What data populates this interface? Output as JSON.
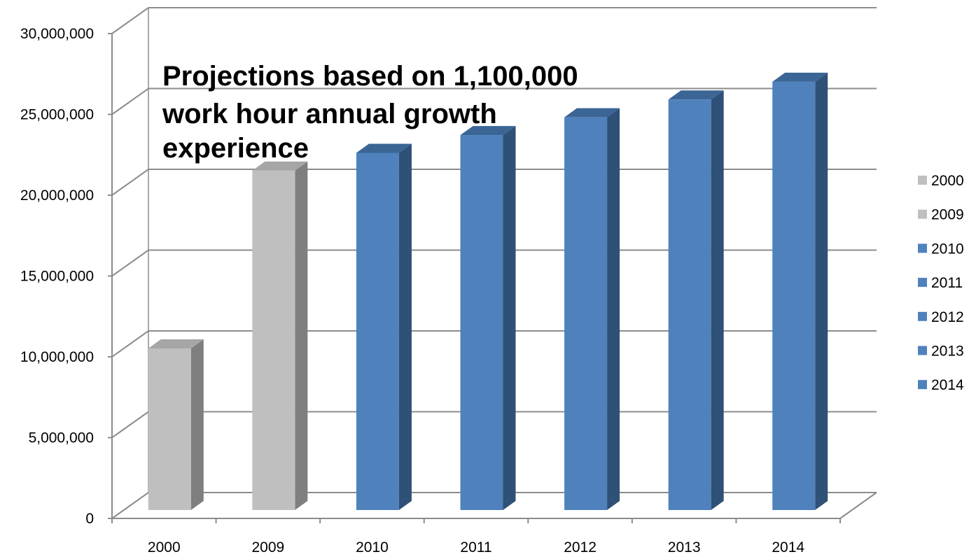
{
  "chart_data": {
    "type": "bar",
    "categories": [
      "2000",
      "2009",
      "2010",
      "2011",
      "2012",
      "2013",
      "2014"
    ],
    "values": [
      10000000,
      21000000,
      22100000,
      23200000,
      24300000,
      25400000,
      26500000
    ],
    "title": "",
    "xlabel": "",
    "ylabel": "",
    "ylim": [
      0,
      30000000
    ],
    "y_ticks": [
      "0",
      "5,000,000",
      "10,000,000",
      "15,000,000",
      "20,000,000",
      "25,000,000",
      "30,000,000"
    ],
    "annotation": [
      "Projections based on 1,100,000",
      "work hour annual growth",
      "experience"
    ],
    "legend": {
      "position": "right",
      "entries": [
        "2000",
        "2009",
        "2010",
        "2011",
        "2012",
        "2013",
        "2014"
      ]
    },
    "grid": true,
    "three_d": true,
    "colors": {
      "historical": "#bfbfbf",
      "historical_side": "#7f7f7f",
      "historical_top": "#a6a6a6",
      "projected": "#4f81bd",
      "projected_side": "#2f5077",
      "projected_top": "#3b6595",
      "gridline": "#8c8c8c"
    },
    "bar_color_keys": [
      "historical",
      "historical",
      "projected",
      "projected",
      "projected",
      "projected",
      "projected"
    ]
  }
}
